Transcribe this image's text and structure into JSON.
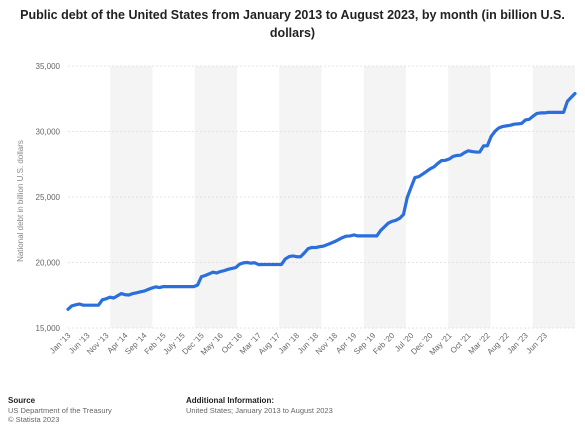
{
  "title": "Public debt of the United States from January 2013 to August 2023, by month (in billion U.S. dollars)",
  "footer": {
    "source_label": "Source",
    "source_line1": "US Department of the Treasury",
    "source_line2": "© Statista 2023",
    "info_label": "Additional Information:",
    "info_line1": "United States; January 2013 to August 2023"
  },
  "colors": {
    "line": "#2a6fdb",
    "band": "#f4f4f4",
    "grid": "#dcdcdc",
    "text": "#666666"
  },
  "chart_data": {
    "type": "line",
    "title": "Public debt of the United States from January 2013 to August 2023, by month (in billion U.S. dollars)",
    "xlabel": "",
    "ylabel": "National debt in billion U.S. dollars",
    "ylim": [
      15000,
      35000
    ],
    "yticks": [
      15000,
      20000,
      25000,
      30000,
      35000
    ],
    "ytick_labels": [
      "15,000",
      "20,000",
      "25,000",
      "30,000",
      "35,000"
    ],
    "x_tick_labels": [
      "Jan '13",
      "Jun '13",
      "Nov '13",
      "Apr '14",
      "Sep '14",
      "Feb '15",
      "July '15",
      "Dec '15",
      "May '16",
      "Oct '16",
      "Mar '17",
      "Aug '17",
      "Jan '18",
      "Jun '18",
      "Nov '18",
      "Apr '19",
      "Sep '19",
      "Feb '20",
      "Jul '20",
      "Dec '20",
      "May '21",
      "Oct '21",
      "Mar '22",
      "Aug '22",
      "Jan '23",
      "Jun '23"
    ],
    "x_tick_every": 5,
    "grid": true,
    "series": [
      {
        "values": [
          16430,
          16690,
          16770,
          16830,
          16740,
          16740,
          16740,
          16740,
          16740,
          17150,
          17230,
          17350,
          17290,
          17460,
          17630,
          17540,
          17520,
          17630,
          17690,
          17760,
          17820,
          17940,
          18050,
          18140,
          18090,
          18160,
          18160,
          18160,
          18160,
          18160,
          18160,
          18160,
          18160,
          18160,
          18280,
          18920,
          19010,
          19130,
          19260,
          19200,
          19310,
          19380,
          19480,
          19550,
          19610,
          19870,
          19970,
          20000,
          19950,
          19980,
          19840,
          19850,
          19850,
          19850,
          19850,
          19850,
          19850,
          20270,
          20450,
          20500,
          20440,
          20440,
          20730,
          21060,
          21150,
          21140,
          21210,
          21250,
          21360,
          21480,
          21600,
          21750,
          21900,
          22010,
          22030,
          22100,
          22030,
          22030,
          22030,
          22030,
          22030,
          22030,
          22440,
          22720,
          23000,
          23140,
          23220,
          23370,
          23660,
          24970,
          25740,
          26480,
          26550,
          26740,
          26940,
          27150,
          27300,
          27560,
          27780,
          27800,
          27900,
          28100,
          28170,
          28190,
          28380,
          28530,
          28470,
          28430,
          28430,
          28900,
          28910,
          29620,
          30010,
          30270,
          30380,
          30430,
          30470,
          30560,
          30580,
          30620,
          30880,
          30930,
          31170,
          31380,
          31420,
          31420,
          31460,
          31460,
          31460,
          31460,
          31460,
          32300,
          32610,
          32900
        ]
      }
    ]
  }
}
